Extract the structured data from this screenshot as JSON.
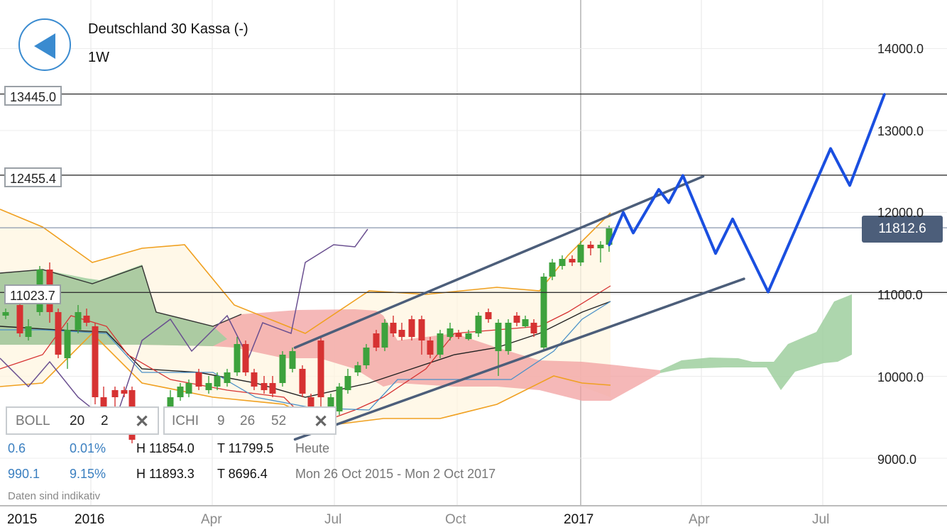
{
  "header": {
    "title": "Deutschland 30 Kassa (-)",
    "interval": "1W"
  },
  "price_tags": {
    "level1": "13445.0",
    "level2": "12455.4",
    "level3": "11023.7",
    "current": "11812.6"
  },
  "indicators": {
    "boll": {
      "name": "BOLL",
      "p1": "20",
      "p2": "2"
    },
    "ichi": {
      "name": "ICHI",
      "p1": "9",
      "p2": "26",
      "p3": "52"
    }
  },
  "info": {
    "row1": {
      "a": "0.6",
      "b": "0.01%",
      "h": "H 11854.0",
      "t": "T 11799.5",
      "label": "Heute"
    },
    "row2": {
      "a": "990.1",
      "b": "9.15%",
      "h": "H 11893.3",
      "t": "T 8696.4",
      "label": "Mon 26 Oct 2015 - Mon 2 Oct 2017"
    },
    "note": "Daten sind indikativ"
  },
  "colors": {
    "up": "#3da23d",
    "down": "#d63232",
    "forecast": "#1a4fe0",
    "channel": "#4c5e7a",
    "boll": "#f0a020",
    "ichi_red": "#f2a0a0",
    "ichi_green": "#9fcf9f"
  },
  "chart_data": {
    "type": "line",
    "title": "Deutschland 30 Kassa (-)",
    "interval": "1W",
    "y_ticks": [
      "14000.0",
      "13000.0",
      "12000.0",
      "11000.0",
      "10000.0",
      "9000.0"
    ],
    "x_ticks": [
      "2015",
      "2016",
      "Apr",
      "Jul",
      "Oct",
      "2017",
      "Apr",
      "Jul"
    ],
    "horizontal_levels": [
      13445.0,
      12455.4,
      11812.6,
      11023.7
    ],
    "current_price": 11812.6,
    "forecast_path": [
      {
        "t": "2017-02",
        "v": 11600
      },
      {
        "t": "2017-02",
        "v": 12000
      },
      {
        "t": "2017-02",
        "v": 11750
      },
      {
        "t": "2017-03",
        "v": 12280
      },
      {
        "t": "2017-03",
        "v": 12120
      },
      {
        "t": "2017-03",
        "v": 12450
      },
      {
        "t": "2017-04",
        "v": 11500
      },
      {
        "t": "2017-05",
        "v": 11920
      },
      {
        "t": "2017-06",
        "v": 11030
      },
      {
        "t": "2017-07",
        "v": 12780
      },
      {
        "t": "2017-08",
        "v": 12330
      },
      {
        "t": "2017-09",
        "v": 13445
      }
    ],
    "channel_upper": [
      {
        "t": "2016-06",
        "v": 10350
      },
      {
        "t": "2017-04",
        "v": 12440
      }
    ],
    "channel_lower": [
      {
        "t": "2016-06",
        "v": 9230
      },
      {
        "t": "2017-05",
        "v": 11190
      }
    ],
    "series": [
      {
        "name": "BOLL",
        "values": [
          12050,
          11650,
          10300,
          9900,
          10300,
          10700,
          10800,
          11000,
          11300,
          11900
        ]
      },
      {
        "name": "ICHI",
        "values": [
          10700,
          10700,
          10350,
          10150,
          10350,
          10700,
          10650,
          10650,
          10900,
          11200
        ]
      }
    ]
  }
}
